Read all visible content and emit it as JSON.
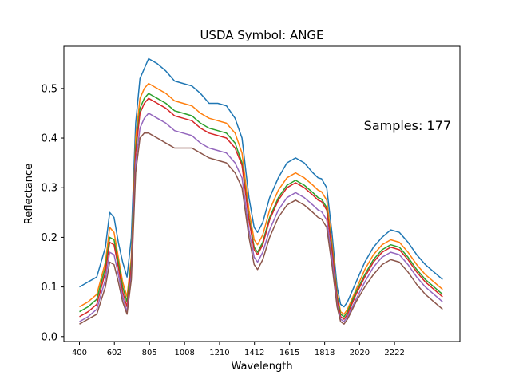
{
  "chart_data": {
    "type": "line",
    "title": "USDA Symbol: ANGE",
    "xlabel": "Wavelength",
    "ylabel": "Reflectance",
    "annotation": "Samples: 177",
    "sample_count": 177,
    "xlim": [
      310,
      2600
    ],
    "ylim": [
      -0.01,
      0.585
    ],
    "x_ticks": [
      400,
      602,
      805,
      1008,
      1210,
      1412,
      1615,
      1818,
      2020,
      2222
    ],
    "x_tick_labels": [
      "400",
      "602",
      "805",
      "1008",
      "1210",
      "1412",
      "1615",
      "1818",
      "2020",
      "2222"
    ],
    "y_ticks": [
      0.0,
      0.1,
      0.2,
      0.3,
      0.4,
      0.5
    ],
    "y_tick_labels": [
      "0.0",
      "0.1",
      "0.2",
      "0.3",
      "0.4",
      "0.5"
    ],
    "grid": false,
    "legend": "none",
    "colors": [
      "#1f77b4",
      "#ff7f0e",
      "#2ca02c",
      "#d62728",
      "#9467bd",
      "#8c564b",
      "#e377c2",
      "#7f7f7f",
      "#bcbd22",
      "#17becf"
    ],
    "x": [
      400,
      450,
      500,
      550,
      575,
      600,
      625,
      650,
      675,
      700,
      725,
      750,
      775,
      800,
      850,
      900,
      950,
      1000,
      1050,
      1100,
      1150,
      1200,
      1250,
      1300,
      1340,
      1380,
      1410,
      1430,
      1460,
      1500,
      1550,
      1600,
      1650,
      1700,
      1750,
      1780,
      1800,
      1830,
      1860,
      1890,
      1910,
      1930,
      1950,
      2000,
      2050,
      2100,
      2150,
      2200,
      2250,
      2300,
      2350,
      2400,
      2450,
      2500
    ],
    "series": [
      {
        "values": [
          0.1,
          0.11,
          0.12,
          0.18,
          0.25,
          0.24,
          0.19,
          0.15,
          0.12,
          0.2,
          0.43,
          0.52,
          0.54,
          0.56,
          0.55,
          0.535,
          0.515,
          0.51,
          0.505,
          0.49,
          0.47,
          0.47,
          0.465,
          0.44,
          0.4,
          0.28,
          0.22,
          0.21,
          0.23,
          0.28,
          0.32,
          0.35,
          0.36,
          0.35,
          0.33,
          0.32,
          0.318,
          0.3,
          0.21,
          0.1,
          0.065,
          0.06,
          0.07,
          0.11,
          0.15,
          0.18,
          0.2,
          0.215,
          0.21,
          0.19,
          0.165,
          0.145,
          0.13,
          0.115
        ]
      },
      {
        "values": [
          0.06,
          0.07,
          0.085,
          0.15,
          0.22,
          0.21,
          0.16,
          0.11,
          0.08,
          0.16,
          0.4,
          0.48,
          0.5,
          0.51,
          0.5,
          0.49,
          0.475,
          0.47,
          0.465,
          0.45,
          0.44,
          0.435,
          0.43,
          0.41,
          0.37,
          0.255,
          0.195,
          0.185,
          0.205,
          0.255,
          0.295,
          0.32,
          0.33,
          0.32,
          0.305,
          0.295,
          0.292,
          0.275,
          0.19,
          0.085,
          0.05,
          0.045,
          0.055,
          0.095,
          0.135,
          0.165,
          0.185,
          0.195,
          0.19,
          0.17,
          0.145,
          0.125,
          0.11,
          0.095
        ]
      },
      {
        "values": [
          0.05,
          0.06,
          0.075,
          0.14,
          0.2,
          0.195,
          0.15,
          0.1,
          0.07,
          0.15,
          0.38,
          0.46,
          0.48,
          0.49,
          0.48,
          0.47,
          0.455,
          0.45,
          0.445,
          0.43,
          0.42,
          0.415,
          0.41,
          0.39,
          0.35,
          0.24,
          0.18,
          0.17,
          0.19,
          0.24,
          0.28,
          0.305,
          0.315,
          0.305,
          0.29,
          0.28,
          0.277,
          0.26,
          0.18,
          0.08,
          0.045,
          0.04,
          0.05,
          0.09,
          0.125,
          0.155,
          0.175,
          0.185,
          0.18,
          0.16,
          0.135,
          0.115,
          0.1,
          0.085
        ]
      },
      {
        "values": [
          0.04,
          0.05,
          0.065,
          0.13,
          0.19,
          0.185,
          0.14,
          0.09,
          0.06,
          0.14,
          0.37,
          0.45,
          0.47,
          0.48,
          0.47,
          0.46,
          0.445,
          0.44,
          0.435,
          0.42,
          0.41,
          0.405,
          0.4,
          0.38,
          0.345,
          0.235,
          0.175,
          0.165,
          0.185,
          0.235,
          0.275,
          0.3,
          0.31,
          0.3,
          0.285,
          0.275,
          0.272,
          0.255,
          0.175,
          0.075,
          0.04,
          0.035,
          0.045,
          0.085,
          0.12,
          0.15,
          0.17,
          0.18,
          0.175,
          0.155,
          0.13,
          0.11,
          0.095,
          0.08
        ]
      },
      {
        "values": [
          0.03,
          0.04,
          0.055,
          0.115,
          0.17,
          0.165,
          0.125,
          0.08,
          0.05,
          0.125,
          0.35,
          0.42,
          0.44,
          0.45,
          0.44,
          0.43,
          0.415,
          0.41,
          0.405,
          0.39,
          0.38,
          0.375,
          0.37,
          0.35,
          0.32,
          0.215,
          0.16,
          0.15,
          0.17,
          0.215,
          0.255,
          0.28,
          0.29,
          0.28,
          0.265,
          0.255,
          0.252,
          0.235,
          0.16,
          0.065,
          0.035,
          0.03,
          0.04,
          0.075,
          0.11,
          0.14,
          0.16,
          0.17,
          0.165,
          0.145,
          0.12,
          0.1,
          0.085,
          0.07
        ]
      },
      {
        "values": [
          0.025,
          0.035,
          0.045,
          0.1,
          0.15,
          0.145,
          0.11,
          0.07,
          0.045,
          0.115,
          0.33,
          0.4,
          0.41,
          0.41,
          0.4,
          0.39,
          0.38,
          0.38,
          0.38,
          0.37,
          0.36,
          0.355,
          0.35,
          0.33,
          0.3,
          0.2,
          0.145,
          0.135,
          0.155,
          0.2,
          0.24,
          0.265,
          0.275,
          0.265,
          0.25,
          0.24,
          0.237,
          0.22,
          0.145,
          0.06,
          0.03,
          0.025,
          0.035,
          0.07,
          0.1,
          0.125,
          0.145,
          0.155,
          0.15,
          0.13,
          0.105,
          0.085,
          0.07,
          0.055
        ]
      }
    ]
  }
}
